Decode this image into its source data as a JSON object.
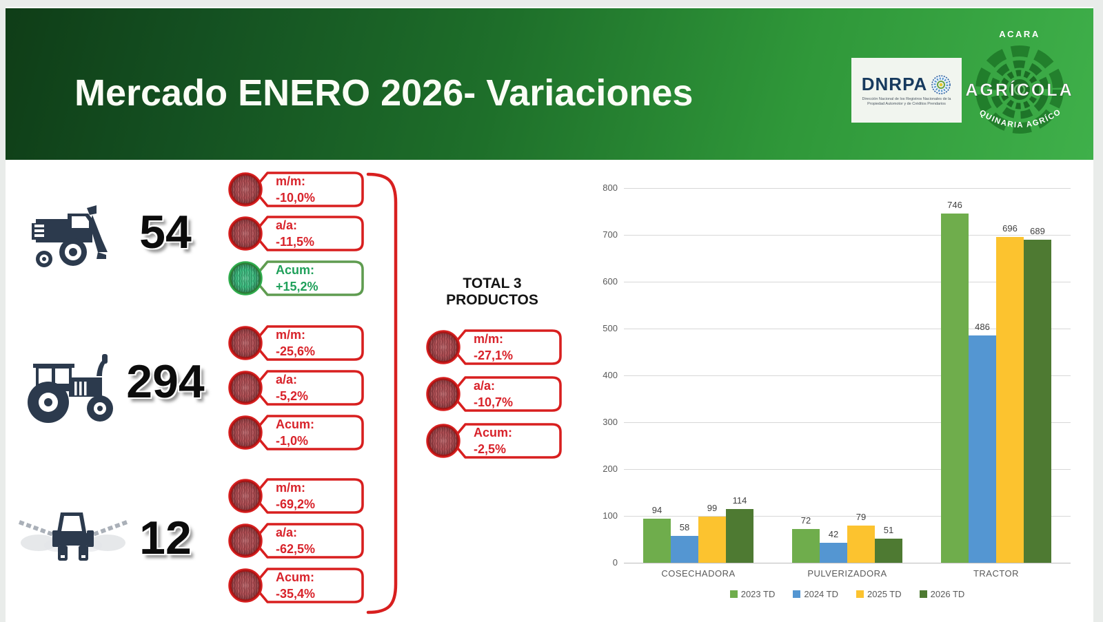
{
  "header": {
    "title": "Mercado ENERO 2026- Variaciones",
    "dnrpa": {
      "name": "DNRPA",
      "sub1": "Dirección Nacional de los Registros Nacionales de la",
      "sub2": "Propiedad Automotor y de Créditos Prendarios"
    },
    "acara": {
      "top": "ACARA",
      "main": "AGRÍCOLA",
      "bottom": "MAQUINARIA AGRÍCOLA"
    }
  },
  "colors": {
    "red_border": "#d81f1f",
    "red_text": "#d8222a",
    "green_border": "#5f9c50",
    "green_ring": "#2fae4e",
    "green_text": "#1fa05a",
    "icon_navy": "#2c3a4d"
  },
  "products": [
    {
      "name": "cosechadora",
      "icon": "combine-harvester-icon",
      "total": "54",
      "indicators": [
        {
          "label": "m/m:",
          "value": "-10,0%",
          "tone": "red"
        },
        {
          "label": "a/a:",
          "value": "-11,5%",
          "tone": "red"
        },
        {
          "label": "Acum:",
          "value": "+15,2%",
          "tone": "green"
        }
      ]
    },
    {
      "name": "tractor",
      "icon": "tractor-icon",
      "total": "294",
      "indicators": [
        {
          "label": "m/m:",
          "value": "-25,6%",
          "tone": "red"
        },
        {
          "label": "a/a:",
          "value": "-5,2%",
          "tone": "red"
        },
        {
          "label": "Acum:",
          "value": "-1,0%",
          "tone": "red"
        }
      ]
    },
    {
      "name": "pulverizadora",
      "icon": "sprayer-icon",
      "total": "12",
      "indicators": [
        {
          "label": "m/m:",
          "value": "-69,2%",
          "tone": "red"
        },
        {
          "label": "a/a:",
          "value": "-62,5%",
          "tone": "red"
        },
        {
          "label": "Acum:",
          "value": "-35,4%",
          "tone": "red"
        }
      ]
    }
  ],
  "total_panel": {
    "title_line1": "TOTAL 3",
    "title_line2": "PRODUCTOS",
    "indicators": [
      {
        "label": "m/m:",
        "value": "-27,1%",
        "tone": "red"
      },
      {
        "label": "a/a:",
        "value": "-10,7%",
        "tone": "red"
      },
      {
        "label": "Acum:",
        "value": "-2,5%",
        "tone": "red"
      }
    ]
  },
  "chart_data": {
    "type": "bar",
    "categories": [
      "COSECHADORA",
      "PULVERIZADORA",
      "TRACTOR"
    ],
    "series": [
      {
        "name": "2023 TD",
        "color": "#6fad4c",
        "values": [
          94,
          72,
          746
        ]
      },
      {
        "name": "2024 TD",
        "color": "#5496d2",
        "values": [
          58,
          42,
          486
        ]
      },
      {
        "name": "2025 TD",
        "color": "#fcc32f",
        "values": [
          99,
          79,
          696
        ]
      },
      {
        "name": "2026 TD",
        "color": "#4e7a32",
        "values": [
          114,
          51,
          689
        ]
      }
    ],
    "title": "",
    "xlabel": "",
    "ylabel": "",
    "ylim": [
      0,
      800
    ],
    "ytick_step": 100,
    "grid": true,
    "legend_position": "bottom"
  }
}
